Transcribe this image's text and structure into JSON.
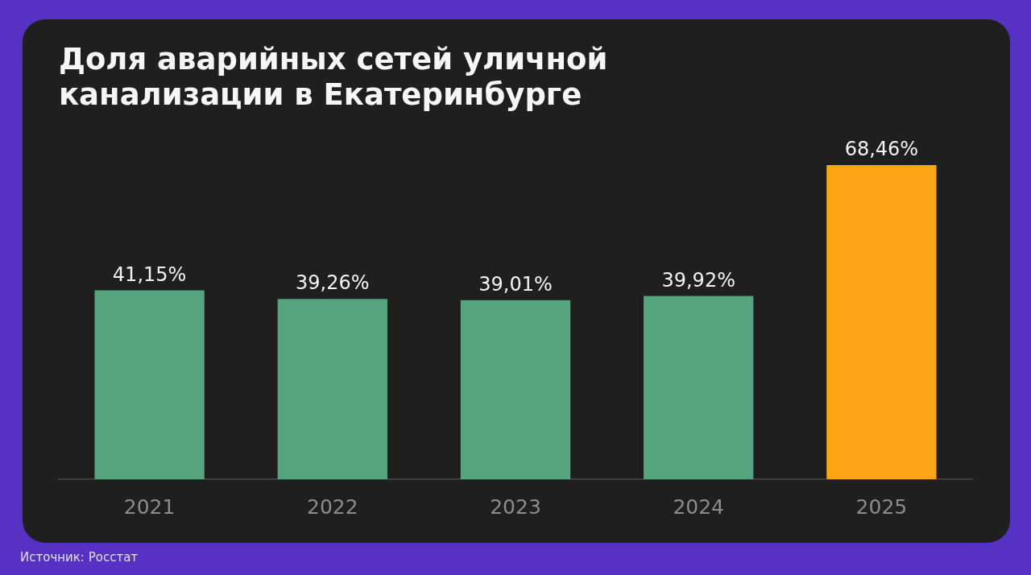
{
  "chart_data": {
    "type": "bar",
    "title": "Доля аварийных сетей уличной канализации в Екатеринбурге",
    "categories": [
      "2021",
      "2022",
      "2023",
      "2024",
      "2025"
    ],
    "values": [
      41.15,
      39.26,
      39.01,
      39.92,
      68.46
    ],
    "colors": [
      "#56a47d",
      "#56a47d",
      "#56a47d",
      "#56a47d",
      "#fda514"
    ],
    "value_labels": [
      "41,15%",
      "39,26%",
      "39,01%",
      "39,92%",
      "68,46%"
    ],
    "annotations": [
      "Источник: Росстат"
    ]
  }
}
